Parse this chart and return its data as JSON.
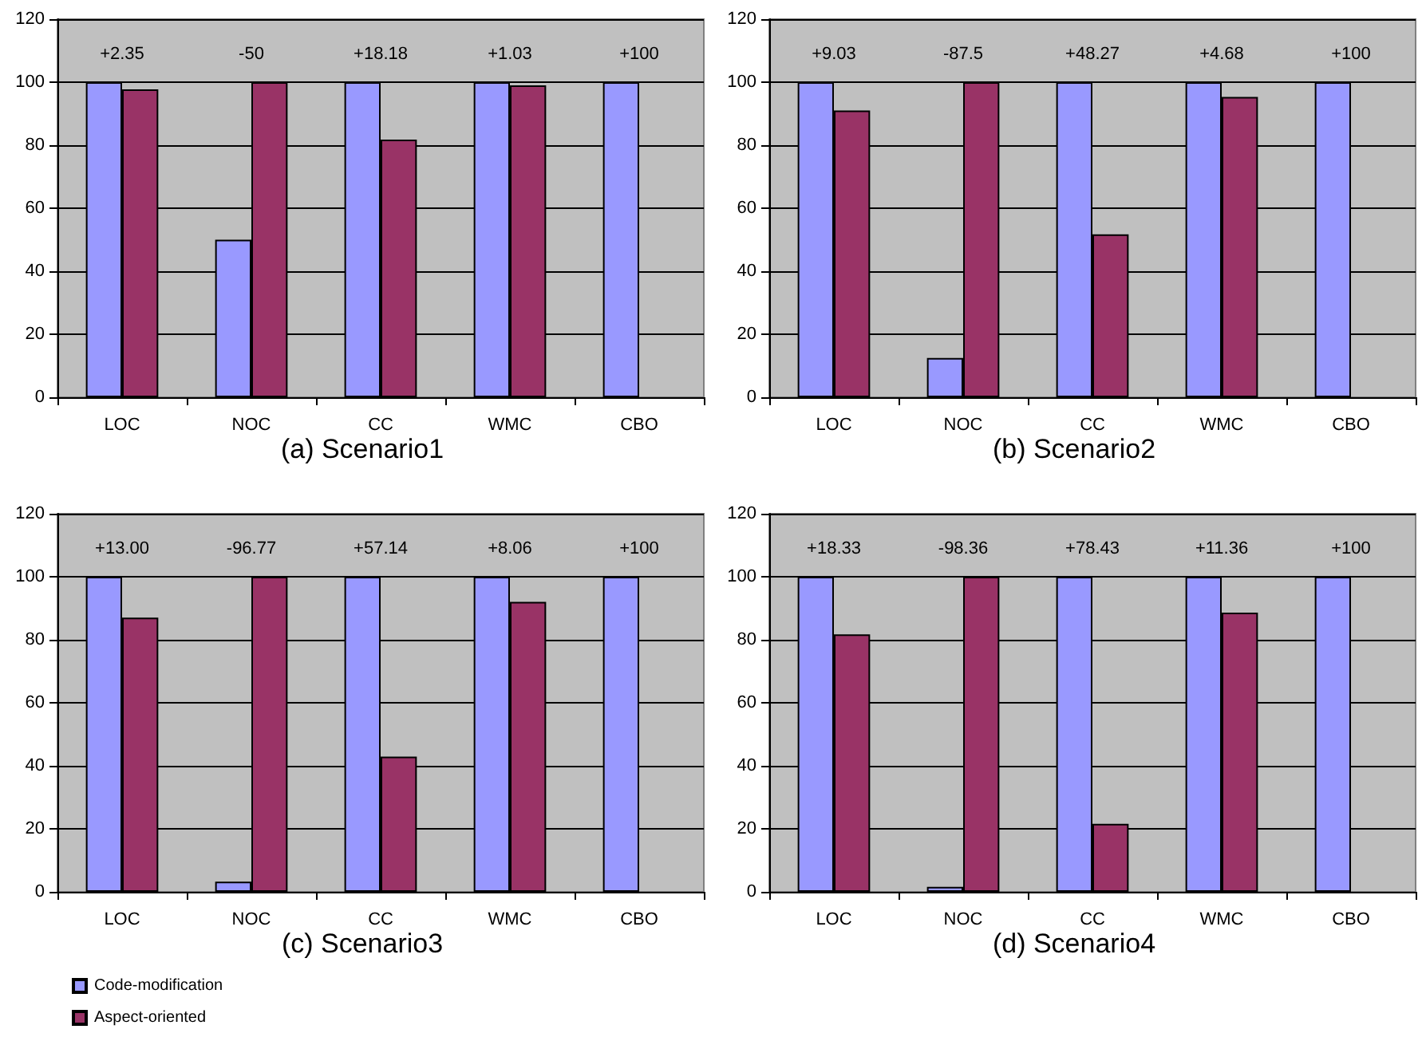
{
  "chart_data": [
    {
      "type": "bar",
      "title": "(a) Scenario1",
      "categories": [
        "LOC",
        "NOC",
        "CC",
        "WMC",
        "CBO"
      ],
      "series": [
        {
          "color": "#9999ff",
          "values": [
            100,
            50,
            100,
            100,
            100
          ]
        },
        {
          "color": "#993366",
          "values": [
            97.7,
            100,
            81.8,
            99,
            0
          ]
        }
      ],
      "ylim": [
        0,
        120
      ],
      "yticks": [
        0,
        20,
        40,
        60,
        80,
        100,
        120
      ],
      "grid": "y",
      "legend": false,
      "annotations": [
        "+2.35",
        "-50",
        "+18.18",
        "+1.03",
        "+100"
      ]
    },
    {
      "type": "bar",
      "title": "(b) Scenario2",
      "categories": [
        "LOC",
        "NOC",
        "CC",
        "WMC",
        "CBO"
      ],
      "series": [
        {
          "color": "#9999ff",
          "values": [
            100,
            12.5,
            100,
            100,
            100
          ]
        },
        {
          "color": "#993366",
          "values": [
            91,
            100,
            51.7,
            95.3,
            0
          ]
        }
      ],
      "ylim": [
        0,
        120
      ],
      "yticks": [
        0,
        20,
        40,
        60,
        80,
        100,
        120
      ],
      "grid": "y",
      "legend": false,
      "annotations": [
        "+9.03",
        "-87.5",
        "+48.27",
        "+4.68",
        "+100"
      ]
    },
    {
      "type": "bar",
      "title": "(c) Scenario3",
      "categories": [
        "LOC",
        "NOC",
        "CC",
        "WMC",
        "CBO"
      ],
      "series": [
        {
          "name": "Code-modification",
          "color": "#9999ff",
          "values": [
            100,
            3.2,
            100,
            100,
            100
          ]
        },
        {
          "name": "Aspect-oriented",
          "color": "#993366",
          "values": [
            87,
            100,
            42.9,
            92,
            0
          ]
        }
      ],
      "ylim": [
        0,
        120
      ],
      "yticks": [
        0,
        20,
        40,
        60,
        80,
        100,
        120
      ],
      "grid": "y",
      "legend": "bottom left",
      "annotations": [
        "+13.00",
        "-96.77",
        "+57.14",
        "+8.06",
        "+100"
      ]
    },
    {
      "type": "bar",
      "title": "(d) Scenario4",
      "categories": [
        "LOC",
        "NOC",
        "CC",
        "WMC",
        "CBO"
      ],
      "series": [
        {
          "color": "#9999ff",
          "values": [
            100,
            1.6,
            100,
            100,
            100
          ]
        },
        {
          "color": "#993366",
          "values": [
            81.7,
            100,
            21.6,
            88.6,
            0
          ]
        }
      ],
      "ylim": [
        0,
        120
      ],
      "yticks": [
        0,
        20,
        40,
        60,
        80,
        100,
        120
      ],
      "grid": "y",
      "legend": false,
      "annotations": [
        "+18.33",
        "-98.36",
        "+78.43",
        "+11.36",
        "+100"
      ]
    }
  ]
}
